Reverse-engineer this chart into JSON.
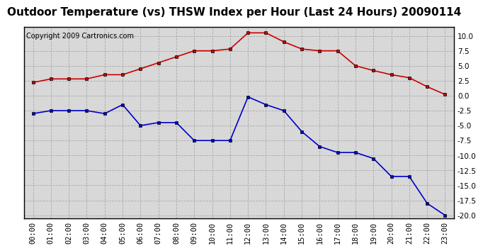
{
  "title": "Outdoor Temperature (vs) THSW Index per Hour (Last 24 Hours) 20090114",
  "copyright": "Copyright 2009 Cartronics.com",
  "hours": [
    "00:00",
    "01:00",
    "02:00",
    "03:00",
    "04:00",
    "05:00",
    "06:00",
    "07:00",
    "08:00",
    "09:00",
    "10:00",
    "11:00",
    "12:00",
    "13:00",
    "14:00",
    "15:00",
    "16:00",
    "17:00",
    "18:00",
    "19:00",
    "20:00",
    "21:00",
    "22:00",
    "23:00"
  ],
  "red_data": [
    2.2,
    2.8,
    2.8,
    2.8,
    3.5,
    3.5,
    4.5,
    5.5,
    6.5,
    7.5,
    7.5,
    7.8,
    10.5,
    10.5,
    9.0,
    7.8,
    7.5,
    7.5,
    5.0,
    4.2,
    3.5,
    3.0,
    1.5,
    0.2
  ],
  "blue_data": [
    -3.0,
    -2.5,
    -2.5,
    -2.5,
    -3.0,
    -1.5,
    -5.0,
    -4.5,
    -4.5,
    -7.5,
    -7.5,
    -7.5,
    -0.2,
    -1.5,
    -2.5,
    -6.0,
    -8.5,
    -9.5,
    -9.5,
    -10.5,
    -13.5,
    -13.5,
    -18.0,
    -20.0
  ],
  "red_color": "#cc0000",
  "blue_color": "#0000cc",
  "bg_color": "#ffffff",
  "plot_bg_color": "#d8d8d8",
  "grid_color": "#aaaaaa",
  "ylim_min": -20.5,
  "ylim_max": 11.5,
  "yticks": [
    -20.0,
    -17.5,
    -15.0,
    -12.5,
    -10.0,
    -7.5,
    -5.0,
    -2.5,
    0.0,
    2.5,
    5.0,
    7.5,
    10.0
  ],
  "title_fontsize": 11,
  "copyright_fontsize": 7,
  "tick_fontsize": 7.5
}
